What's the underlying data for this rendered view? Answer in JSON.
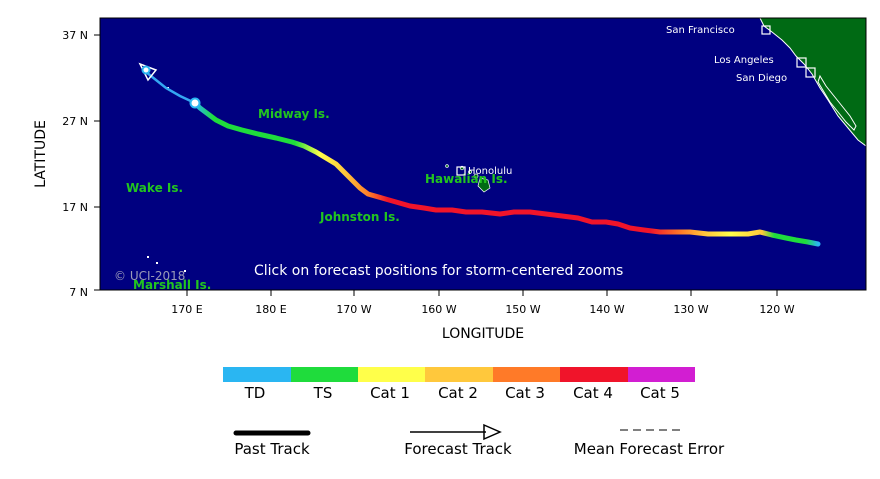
{
  "map": {
    "axis": {
      "x_title": "LONGITUDE",
      "y_title": "LATITUDE",
      "lat_ticks": [
        "37 N",
        "27 N",
        "17 N",
        "7 N"
      ],
      "lon_ticks": [
        "170 E",
        "180 E",
        "170 W",
        "160 W",
        "150 W",
        "140 W",
        "130 W",
        "120 W"
      ]
    },
    "places": {
      "midway": "Midway Is.",
      "wake": "Wake Is.",
      "johnston": "Johnston Is.",
      "hawaiian": "Hawaiian Is.",
      "marshall": "Marshall Is.",
      "honolulu": "Honolulu",
      "san_francisco": "San Francisco",
      "los_angeles": "Los Angeles",
      "san_diego": "San Diego"
    },
    "copyright": "© UCI-2018",
    "notice": "Click on forecast positions for storm-centered zooms",
    "colors": {
      "ocean": "#000080",
      "land": "#006a14",
      "place_label": "#22c51f",
      "track_forecast": "#34a7f2"
    }
  },
  "legend": {
    "categories": [
      {
        "label": "TD",
        "color": "#2ab6f2"
      },
      {
        "label": "TS",
        "color": "#1fdc3c"
      },
      {
        "label": "Cat 1",
        "color": "#ffff4a"
      },
      {
        "label": "Cat 2",
        "color": "#ffc83c"
      },
      {
        "label": "Cat 3",
        "color": "#ff7a28"
      },
      {
        "label": "Cat 4",
        "color": "#f0142a"
      },
      {
        "label": "Cat 5",
        "color": "#d21ed2"
      }
    ],
    "key": {
      "past_track": "Past Track",
      "forecast_track": "Forecast Track",
      "mean_error": "Mean Forecast Error"
    }
  }
}
